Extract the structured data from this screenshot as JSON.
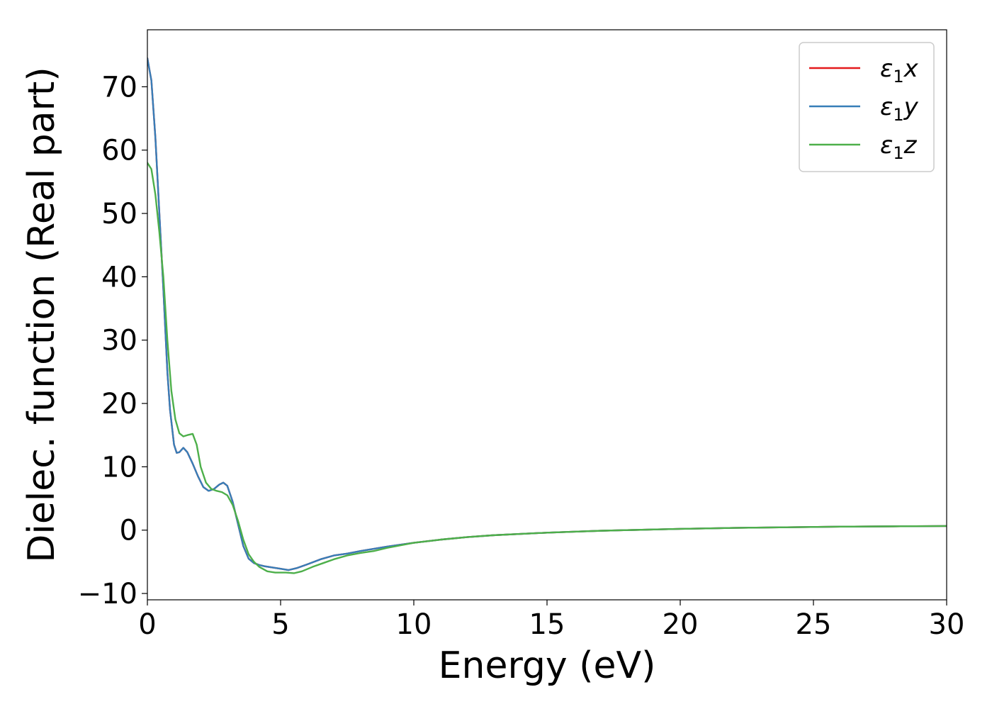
{
  "chart_data": {
    "type": "line",
    "title": "",
    "xlabel": "Energy (eV)",
    "ylabel": "Dielec. function (Real part)",
    "xlim": [
      0,
      30
    ],
    "ylim": [
      -11,
      79
    ],
    "xticks": [
      0,
      5,
      10,
      15,
      20,
      25,
      30
    ],
    "yticks": [
      -10,
      0,
      10,
      20,
      30,
      40,
      50,
      60,
      70
    ],
    "xtick_labels": [
      "0",
      "5",
      "10",
      "15",
      "20",
      "25",
      "30"
    ],
    "ytick_labels": [
      "−10",
      "0",
      "10",
      "20",
      "30",
      "40",
      "50",
      "60",
      "70"
    ],
    "grid": false,
    "legend_position": "top-right",
    "series": [
      {
        "name": "ε₁x",
        "legend": {
          "base": "ε",
          "sub": "1",
          "suffix": "x"
        },
        "color": "#e41a1c",
        "x": [
          0,
          0.15,
          0.3,
          0.45,
          0.6,
          0.75,
          0.85,
          1.0,
          1.1,
          1.2,
          1.35,
          1.5,
          1.7,
          1.9,
          2.1,
          2.3,
          2.5,
          2.7,
          2.85,
          3.0,
          3.2,
          3.4,
          3.6,
          3.8,
          4.0,
          4.2,
          4.4,
          4.7,
          5.0,
          5.3,
          5.6,
          6.0,
          6.5,
          7.0,
          7.5,
          8.0,
          9.0,
          10,
          11,
          12,
          13,
          14,
          15,
          16,
          17,
          18,
          19,
          20,
          22,
          24,
          26,
          28,
          30
        ],
        "y": [
          74.5,
          71,
          62,
          50,
          38,
          25,
          19,
          13.5,
          12.2,
          12.3,
          13,
          12.3,
          10.5,
          8.5,
          6.8,
          6.2,
          6.5,
          7.2,
          7.5,
          7,
          4.5,
          1,
          -2.5,
          -4.5,
          -5.2,
          -5.5,
          -5.7,
          -5.9,
          -6.1,
          -6.3,
          -6.0,
          -5.4,
          -4.6,
          -4.0,
          -3.7,
          -3.3,
          -2.6,
          -2.0,
          -1.5,
          -1.1,
          -0.8,
          -0.6,
          -0.4,
          -0.25,
          -0.1,
          0.0,
          0.1,
          0.2,
          0.35,
          0.45,
          0.55,
          0.6,
          0.65
        ]
      },
      {
        "name": "ε₁y",
        "legend": {
          "base": "ε",
          "sub": "1",
          "suffix": "y"
        },
        "color": "#377eb8",
        "x": [
          0,
          0.15,
          0.3,
          0.45,
          0.6,
          0.75,
          0.85,
          1.0,
          1.1,
          1.2,
          1.35,
          1.5,
          1.7,
          1.9,
          2.1,
          2.3,
          2.5,
          2.7,
          2.85,
          3.0,
          3.2,
          3.4,
          3.6,
          3.8,
          4.0,
          4.2,
          4.4,
          4.7,
          5.0,
          5.3,
          5.6,
          6.0,
          6.5,
          7.0,
          7.5,
          8.0,
          9.0,
          10,
          11,
          12,
          13,
          14,
          15,
          16,
          17,
          18,
          19,
          20,
          22,
          24,
          26,
          28,
          30
        ],
        "y": [
          74.5,
          71,
          62,
          50,
          38,
          25,
          19,
          13.5,
          12.2,
          12.3,
          13,
          12.3,
          10.5,
          8.5,
          6.8,
          6.2,
          6.5,
          7.2,
          7.5,
          7,
          4.5,
          1,
          -2.5,
          -4.5,
          -5.2,
          -5.5,
          -5.7,
          -5.9,
          -6.1,
          -6.3,
          -6.0,
          -5.4,
          -4.6,
          -4.0,
          -3.7,
          -3.3,
          -2.6,
          -2.0,
          -1.5,
          -1.1,
          -0.8,
          -0.6,
          -0.4,
          -0.25,
          -0.1,
          0.0,
          0.1,
          0.2,
          0.35,
          0.45,
          0.55,
          0.6,
          0.65
        ]
      },
      {
        "name": "ε₁z",
        "legend": {
          "base": "ε",
          "sub": "1",
          "suffix": "z"
        },
        "color": "#4daf4a",
        "x": [
          0,
          0.15,
          0.3,
          0.45,
          0.6,
          0.75,
          0.9,
          1.05,
          1.2,
          1.35,
          1.5,
          1.7,
          1.85,
          2.0,
          2.2,
          2.4,
          2.6,
          2.8,
          3.0,
          3.2,
          3.4,
          3.6,
          3.8,
          4.0,
          4.2,
          4.5,
          4.8,
          5.2,
          5.5,
          5.8,
          6.2,
          6.6,
          7.0,
          7.5,
          8.0,
          8.5,
          9.0,
          10,
          11,
          12,
          13,
          14,
          15,
          16,
          17,
          18,
          19,
          20,
          22,
          24,
          26,
          28,
          30
        ],
        "y": [
          58,
          57,
          53,
          47,
          40,
          30,
          22,
          17.5,
          15.3,
          14.8,
          15,
          15.2,
          13.5,
          10,
          7.5,
          6.5,
          6.2,
          6.0,
          5.5,
          4,
          1.5,
          -1.5,
          -3.8,
          -5.0,
          -5.8,
          -6.5,
          -6.7,
          -6.7,
          -6.8,
          -6.5,
          -5.8,
          -5.2,
          -4.6,
          -4.0,
          -3.6,
          -3.3,
          -2.8,
          -2.0,
          -1.5,
          -1.1,
          -0.8,
          -0.6,
          -0.4,
          -0.25,
          -0.1,
          0.0,
          0.1,
          0.2,
          0.35,
          0.45,
          0.55,
          0.6,
          0.65
        ]
      }
    ]
  }
}
